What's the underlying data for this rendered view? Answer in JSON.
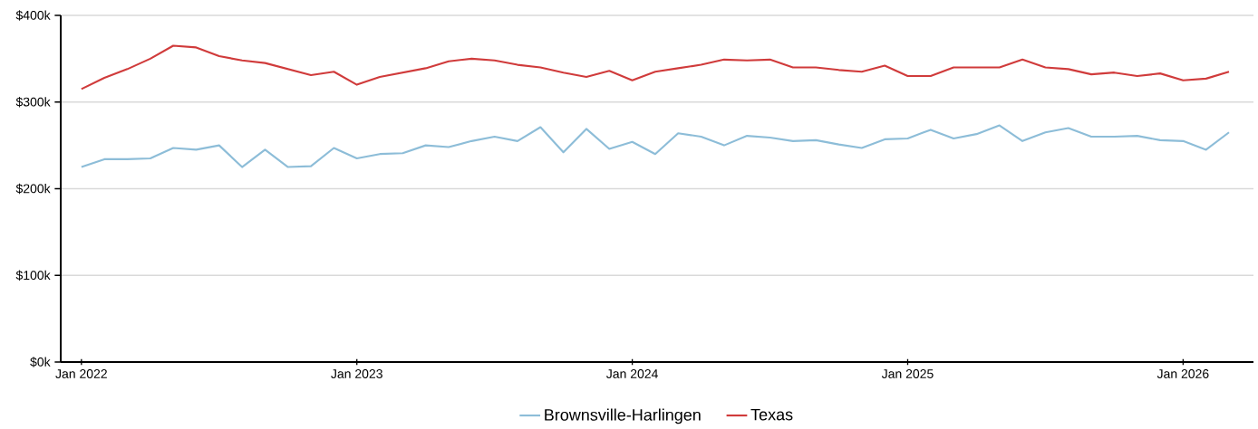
{
  "chart_data": {
    "type": "line",
    "x": [
      "2022-01",
      "2022-02",
      "2022-03",
      "2022-04",
      "2022-05",
      "2022-06",
      "2022-07",
      "2022-08",
      "2022-09",
      "2022-10",
      "2022-11",
      "2022-12",
      "2023-01",
      "2023-02",
      "2023-03",
      "2023-04",
      "2023-05",
      "2023-06",
      "2023-07",
      "2023-08",
      "2023-09",
      "2023-10",
      "2023-11",
      "2023-12",
      "2024-01",
      "2024-02",
      "2024-03",
      "2024-04",
      "2024-05",
      "2024-06",
      "2024-07",
      "2024-08",
      "2024-09",
      "2024-10",
      "2024-11",
      "2024-12",
      "2025-01",
      "2025-02",
      "2025-03",
      "2025-04",
      "2025-05",
      "2025-06",
      "2025-07",
      "2025-08",
      "2025-09",
      "2025-10",
      "2025-11",
      "2025-12",
      "2026-01",
      "2026-02",
      "2026-03"
    ],
    "series": [
      {
        "name": "Brownsville-Harlingen",
        "color": "#8dbdd8",
        "values": [
          225000,
          234000,
          234000,
          235000,
          247000,
          245000,
          250000,
          225000,
          245000,
          225000,
          226000,
          247000,
          235000,
          240000,
          241000,
          250000,
          248000,
          255000,
          260000,
          255000,
          271000,
          242000,
          269000,
          246000,
          254000,
          240000,
          264000,
          260000,
          250000,
          261000,
          259000,
          255000,
          256000,
          251000,
          247000,
          257000,
          258000,
          268000,
          258000,
          263000,
          273000,
          255000,
          265000,
          270000,
          260000,
          260000,
          261000,
          256000,
          255000,
          245000,
          265000
        ]
      },
      {
        "name": "Texas",
        "color": "#d03b3b",
        "values": [
          315000,
          328000,
          338000,
          350000,
          365000,
          363000,
          353000,
          348000,
          345000,
          338000,
          331000,
          335000,
          320000,
          329000,
          334000,
          339000,
          347000,
          350000,
          348000,
          343000,
          340000,
          334000,
          329000,
          336000,
          325000,
          335000,
          339000,
          343000,
          349000,
          348000,
          349000,
          340000,
          340000,
          337000,
          335000,
          342000,
          330000,
          330000,
          340000,
          340000,
          340000,
          349000,
          340000,
          338000,
          332000,
          334000,
          330000,
          333000,
          325000,
          327000,
          335000
        ]
      }
    ],
    "xlim": [
      "2021-12-04",
      "2026-04-03"
    ],
    "xticks": [
      {
        "value": "2022-01",
        "label": "Jan 2022"
      },
      {
        "value": "2023-01",
        "label": "Jan 2023"
      },
      {
        "value": "2024-01",
        "label": "Jan 2024"
      },
      {
        "value": "2025-01",
        "label": "Jan 2025"
      },
      {
        "value": "2026-01",
        "label": "Jan 2026"
      }
    ],
    "ylim": [
      0,
      400000
    ],
    "yticks": [
      {
        "value": 0,
        "label": "$0k"
      },
      {
        "value": 100000,
        "label": "$100k"
      },
      {
        "value": 200000,
        "label": "$200k"
      },
      {
        "value": 300000,
        "label": "$300k"
      },
      {
        "value": 400000,
        "label": "$400k"
      }
    ],
    "grid": "y",
    "legend": "bottom",
    "marker": "none",
    "line_style": "solid"
  }
}
